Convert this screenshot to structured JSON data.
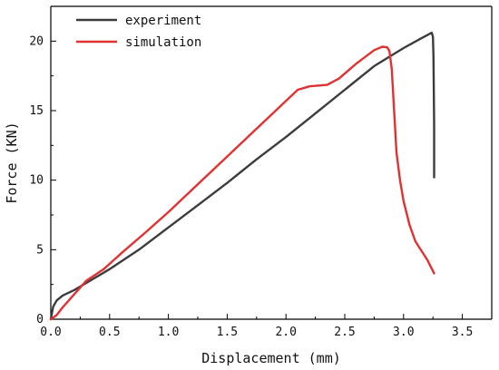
{
  "chart_data": {
    "type": "line",
    "title": "",
    "xlabel": "Displacement (mm)",
    "ylabel": "Force (KN)",
    "xlim": [
      0.0,
      3.75
    ],
    "ylim": [
      0,
      22.5
    ],
    "xticks": [
      0.0,
      0.5,
      1.0,
      1.5,
      2.0,
      2.5,
      3.0,
      3.5
    ],
    "xtick_labels": [
      "0.0",
      "0.5",
      "1.0",
      "1.5",
      "2.0",
      "2.5",
      "3.0",
      "3.5"
    ],
    "yticks": [
      0,
      5,
      10,
      15,
      20
    ],
    "ytick_labels": [
      "0",
      "5",
      "10",
      "15",
      "20"
    ],
    "grid": false,
    "legend_position": "top-left",
    "series": [
      {
        "name": "experiment",
        "color": "#3c3c3c",
        "x": [
          0.0,
          0.02,
          0.05,
          0.1,
          0.2,
          0.3,
          0.5,
          0.75,
          1.0,
          1.25,
          1.5,
          1.75,
          2.0,
          2.25,
          2.5,
          2.75,
          3.0,
          3.15,
          3.24,
          3.25,
          3.255,
          3.26,
          3.26
        ],
        "y": [
          0.0,
          0.9,
          1.35,
          1.7,
          2.1,
          2.6,
          3.6,
          5.0,
          6.6,
          8.2,
          9.8,
          11.5,
          13.1,
          14.8,
          16.5,
          18.2,
          19.5,
          20.2,
          20.6,
          20.3,
          18.8,
          14.0,
          10.2
        ]
      },
      {
        "name": "simulation",
        "color": "#e03232",
        "x": [
          0.0,
          0.05,
          0.1,
          0.2,
          0.3,
          0.45,
          0.6,
          0.8,
          1.0,
          1.2,
          1.4,
          1.6,
          1.8,
          2.0,
          2.1,
          2.2,
          2.35,
          2.45,
          2.6,
          2.75,
          2.82,
          2.86,
          2.88,
          2.9,
          2.92,
          2.94,
          2.97,
          3.0,
          3.05,
          3.1,
          3.2,
          3.26
        ],
        "y": [
          0.0,
          0.3,
          0.85,
          1.8,
          2.75,
          3.6,
          4.75,
          6.2,
          7.7,
          9.3,
          10.9,
          12.5,
          14.1,
          15.7,
          16.5,
          16.75,
          16.85,
          17.3,
          18.4,
          19.35,
          19.6,
          19.55,
          19.3,
          18.0,
          15.0,
          12.0,
          10.0,
          8.5,
          6.8,
          5.6,
          4.3,
          3.3
        ]
      }
    ]
  }
}
